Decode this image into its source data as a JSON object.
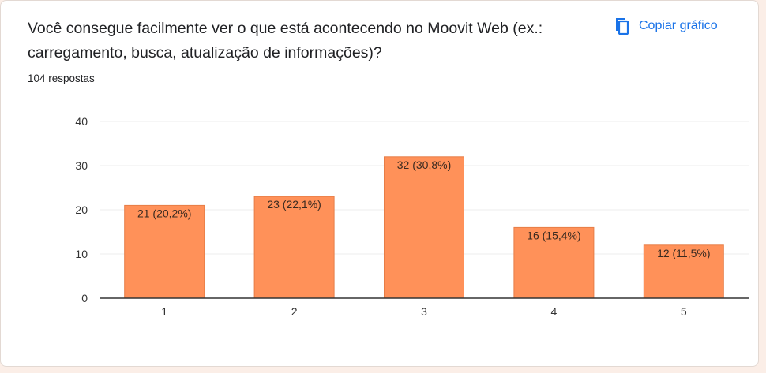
{
  "question": {
    "title": "Você consegue facilmente ver o que está acontecendo no Moovit Web (ex.: carregamento, busca, atualização de informações)?",
    "responses": "104 respostas"
  },
  "toolbar": {
    "copy_label": "Copiar gráfico",
    "copy_icon": "copy-icon"
  },
  "colors": {
    "bar": "#ff9159",
    "bar_stroke": "#e77d47",
    "grid": "#ececec",
    "axis": "#333333",
    "accent": "#1a73e8",
    "background": "#fbeee7"
  },
  "chart_data": {
    "type": "bar",
    "categories": [
      "1",
      "2",
      "3",
      "4",
      "5"
    ],
    "values": [
      21,
      23,
      32,
      16,
      12
    ],
    "data_labels": [
      "21 (20,2%)",
      "23 (22,1%)",
      "32 (30,8%)",
      "16 (15,4%)",
      "12 (11,5%)"
    ],
    "yticks": [
      0,
      10,
      20,
      30,
      40
    ],
    "ylim": [
      0,
      40
    ],
    "grid": true,
    "title": "",
    "xlabel": "",
    "ylabel": ""
  }
}
